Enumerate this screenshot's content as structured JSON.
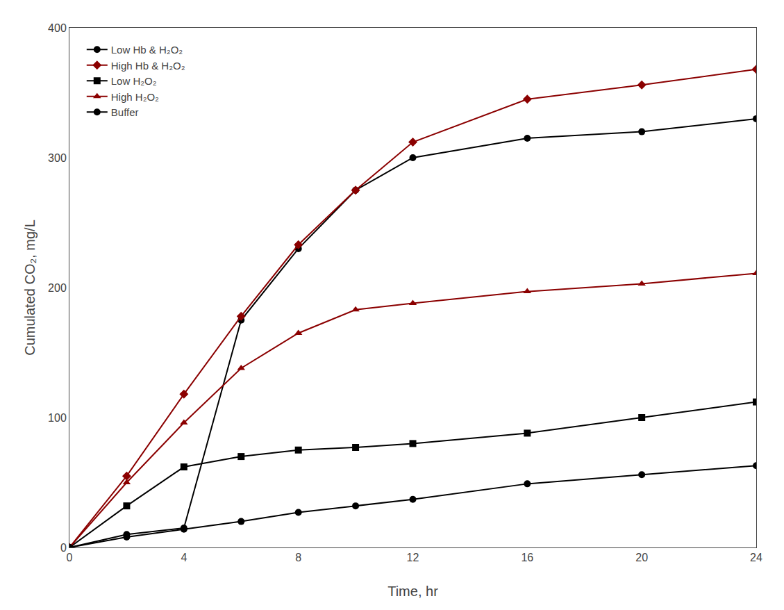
{
  "chart_data": {
    "type": "line",
    "x_label": "Time, hr",
    "y_label": "Cumulated CO₂, mg/L",
    "xlim": [
      0,
      24
    ],
    "ylim": [
      0,
      400
    ],
    "xticks": [
      0,
      4,
      8,
      12,
      16,
      20,
      24
    ],
    "yticks": [
      0,
      100,
      200,
      300,
      400
    ],
    "grid": false,
    "legend": "upper left",
    "x": [
      0,
      2,
      4,
      6,
      8,
      10,
      12,
      16,
      20,
      24
    ],
    "series": [
      {
        "name": "Low Hb & H₂O₂",
        "color": "#000000",
        "marker": "circle",
        "values": [
          0,
          10,
          15,
          175,
          230,
          275,
          300,
          315,
          320,
          330
        ]
      },
      {
        "name": "High Hb & H₂O₂",
        "color": "#8B0000",
        "marker": "diamond",
        "values": [
          0,
          55,
          118,
          178,
          233,
          275,
          312,
          345,
          356,
          368
        ]
      },
      {
        "name": "Low H₂O₂",
        "color": "#000000",
        "marker": "square",
        "values": [
          0,
          32,
          62,
          70,
          75,
          77,
          80,
          88,
          100,
          112
        ]
      },
      {
        "name": "High H₂O₂",
        "color": "#8B0000",
        "marker": "triangle-up",
        "values": [
          0,
          50,
          96,
          138,
          165,
          183,
          188,
          197,
          203,
          211
        ]
      },
      {
        "name": "Buffer",
        "color": "#000000",
        "marker": "circle",
        "values": [
          0,
          8,
          14,
          20,
          27,
          32,
          37,
          49,
          56,
          63
        ]
      }
    ]
  }
}
